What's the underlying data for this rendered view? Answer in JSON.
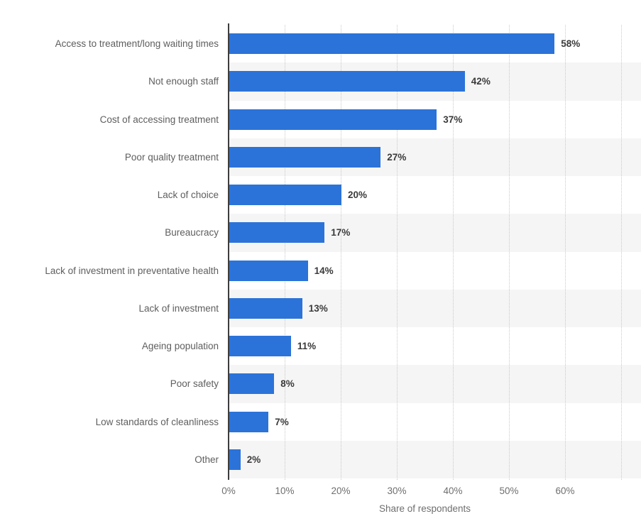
{
  "chart_data": {
    "type": "bar",
    "orientation": "horizontal",
    "title": "",
    "categories": [
      "Access to treatment/long waiting times",
      "Not enough staff",
      "Cost of accessing treatment",
      "Poor quality treatment",
      "Lack of choice",
      "Bureaucracy",
      "Lack of investment in preventative health",
      "Lack of investment",
      "Ageing population",
      "Poor safety",
      "Low standards of cleanliness",
      "Other"
    ],
    "values": [
      58,
      42,
      37,
      27,
      20,
      17,
      14,
      13,
      11,
      8,
      7,
      2
    ],
    "value_labels": [
      "58%",
      "42%",
      "37%",
      "27%",
      "20%",
      "17%",
      "14%",
      "13%",
      "11%",
      "8%",
      "7%",
      "2%"
    ],
    "xlabel": "Share of respondents",
    "ylabel": "",
    "x_ticks": [
      "0%",
      "10%",
      "20%",
      "30%",
      "40%",
      "50%",
      "60%"
    ],
    "x_tick_values": [
      0,
      10,
      20,
      30,
      40,
      50,
      60
    ],
    "xlim": [
      0,
      73.5
    ],
    "grid": "vertical dotted gridlines every 10%, one unlabeled gridline at 70%",
    "legend": "none",
    "row_striping": "alternate rows shaded in plot area only",
    "colors": {
      "bar": "#2b73d9",
      "row_stripe": "#f5f5f5",
      "gridline": "#c9c9c9",
      "axis_line": "#3d3d3d",
      "category_label": "#5e5e5e",
      "value_label": "#3a3a3a",
      "tick_label": "#6f6f6f",
      "background": "#ffffff"
    }
  }
}
